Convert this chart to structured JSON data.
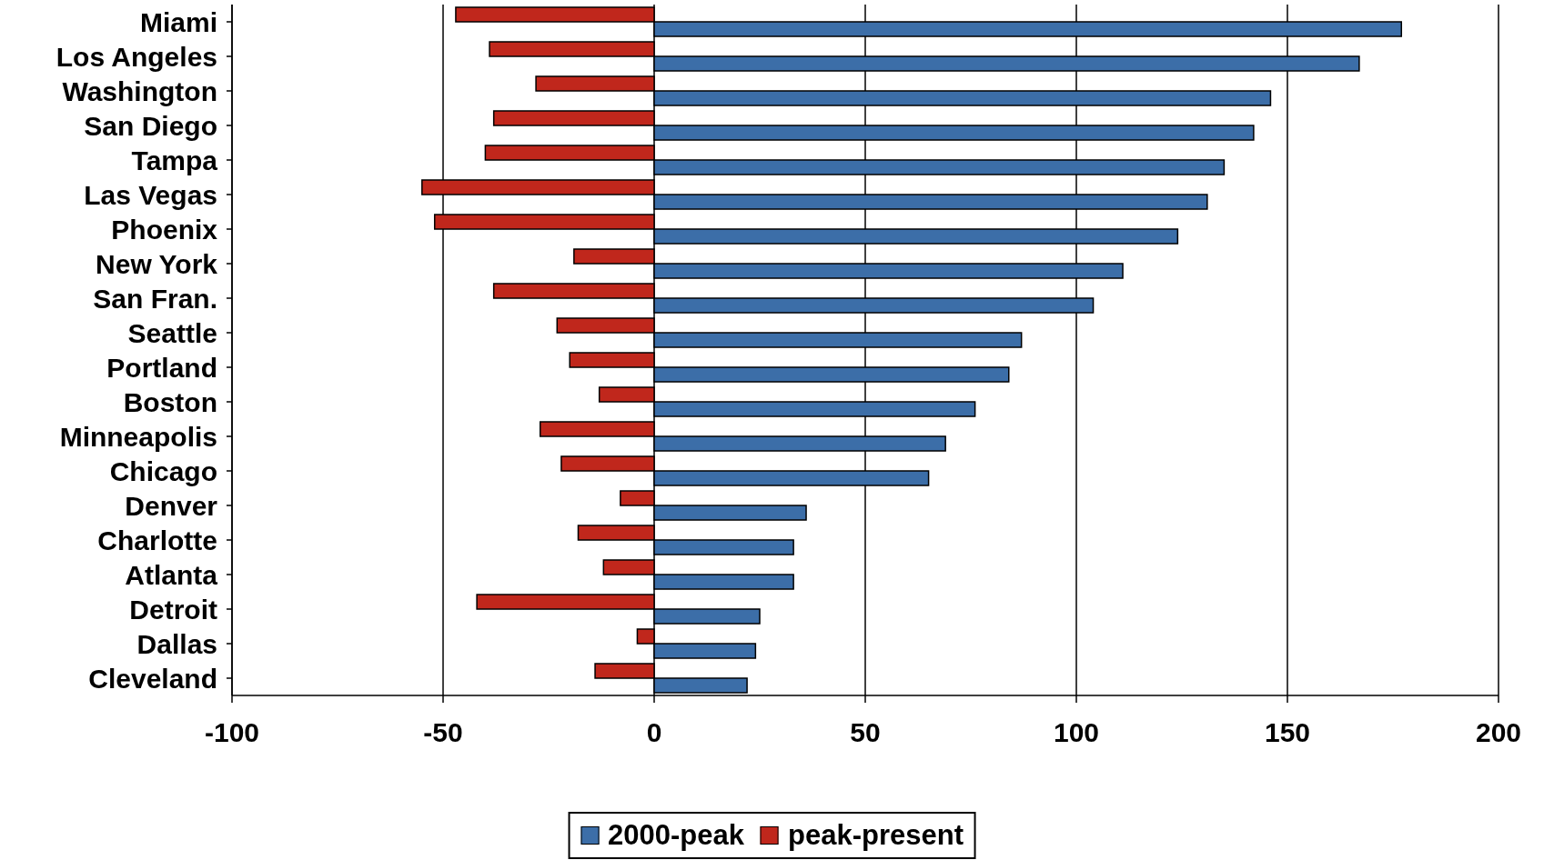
{
  "chart_data": {
    "type": "bar",
    "orientation": "horizontal",
    "categories": [
      "Miami",
      "Los Angeles",
      "Washington",
      "San Diego",
      "Tampa",
      "Las Vegas",
      "Phoenix",
      "New York",
      "San Fran.",
      "Seattle",
      "Portland",
      "Boston",
      "Minneapolis",
      "Chicago",
      "Denver",
      "Charlotte",
      "Atlanta",
      "Detroit",
      "Dallas",
      "Cleveland"
    ],
    "series": [
      {
        "name": "2000-peak",
        "color": "#3c6ea8",
        "values": [
          177,
          167,
          146,
          142,
          135,
          131,
          124,
          111,
          104,
          87,
          84,
          76,
          69,
          65,
          36,
          33,
          33,
          25,
          24,
          22
        ]
      },
      {
        "name": "peak-present",
        "color": "#c0271c",
        "values": [
          -47,
          -39,
          -28,
          -38,
          -40,
          -55,
          -52,
          -19,
          -38,
          -23,
          -20,
          -13,
          -27,
          -22,
          -8,
          -18,
          -12,
          -42,
          -4,
          -14
        ]
      }
    ],
    "xlim": [
      -100,
      200
    ],
    "xticks": [
      -100,
      -50,
      0,
      50,
      100,
      150,
      200
    ],
    "grid": "x",
    "legend": "bottom"
  }
}
